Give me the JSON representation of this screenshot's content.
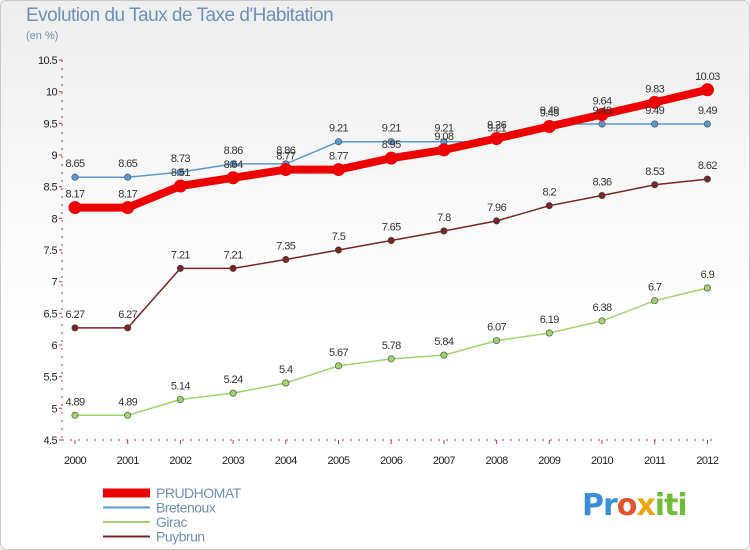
{
  "title": "Evolution du Taux de Taxe d'Habitation",
  "unit_label": "(en %)",
  "logo": {
    "text": "Proxiti",
    "parts": [
      "Pr",
      "o",
      "x",
      "iti"
    ]
  },
  "chart_data": {
    "type": "line",
    "title": "Evolution du Taux de Taxe d'Habitation",
    "ylabel": "(en %)",
    "xlabel": "",
    "categories": [
      "2000",
      "2001",
      "2002",
      "2003",
      "2004",
      "2005",
      "2006",
      "2007",
      "2008",
      "2009",
      "2010",
      "2011",
      "2012"
    ],
    "ylim": [
      4.5,
      10.5
    ],
    "yticks": [
      "4.5",
      "5",
      "5.5",
      "6",
      "6.5",
      "7",
      "7.5",
      "8",
      "8.5",
      "9",
      "9.5",
      "10",
      "10.5"
    ],
    "grid": false,
    "legend_position": "bottom-left",
    "series": [
      {
        "name": "PRUDHOMAT",
        "color": "#ee0000",
        "thick": true,
        "values": [
          8.17,
          8.17,
          8.51,
          8.64,
          8.77,
          8.77,
          8.95,
          9.08,
          9.26,
          9.45,
          9.64,
          9.83,
          10.03
        ],
        "labels": [
          "8.17",
          "8.17",
          "8.51",
          "8.64",
          "8.77",
          "8.77",
          "8.95",
          "9.08",
          "9.26",
          "9.45",
          "9.64",
          "9.83",
          "10.03"
        ]
      },
      {
        "name": "Bretenoux",
        "color": "#5a9ad2",
        "thick": false,
        "values": [
          8.65,
          8.65,
          8.73,
          8.86,
          8.86,
          9.21,
          9.21,
          9.21,
          9.21,
          9.49,
          9.49,
          9.49,
          9.49
        ],
        "labels": [
          "8.65",
          "8.65",
          "8.73",
          "8.86",
          "8.86",
          "9.21",
          "9.21",
          "9.21",
          "9.21",
          "9.49",
          "9.49",
          "9.49",
          "9.49"
        ]
      },
      {
        "name": "Girac",
        "color": "#9ed46a",
        "thick": false,
        "values": [
          4.89,
          4.89,
          5.14,
          5.24,
          5.4,
          5.67,
          5.78,
          5.84,
          6.07,
          6.19,
          6.38,
          6.7,
          6.9
        ],
        "labels": [
          "4.89",
          "4.89",
          "5.14",
          "5.24",
          "5.4",
          "5.67",
          "5.78",
          "5.84",
          "6.07",
          "6.19",
          "6.38",
          "6.7",
          "6.9"
        ]
      },
      {
        "name": "Puybrun",
        "color": "#7a2424",
        "thick": false,
        "values": [
          6.27,
          6.27,
          7.21,
          7.21,
          7.35,
          7.5,
          7.65,
          7.8,
          7.96,
          8.2,
          8.36,
          8.53,
          8.62
        ],
        "labels": [
          "6.27",
          "6.27",
          "7.21",
          "7.21",
          "7.35",
          "7.5",
          "7.65",
          "7.8",
          "7.96",
          "8.2",
          "8.36",
          "8.53",
          "8.62"
        ]
      }
    ]
  }
}
